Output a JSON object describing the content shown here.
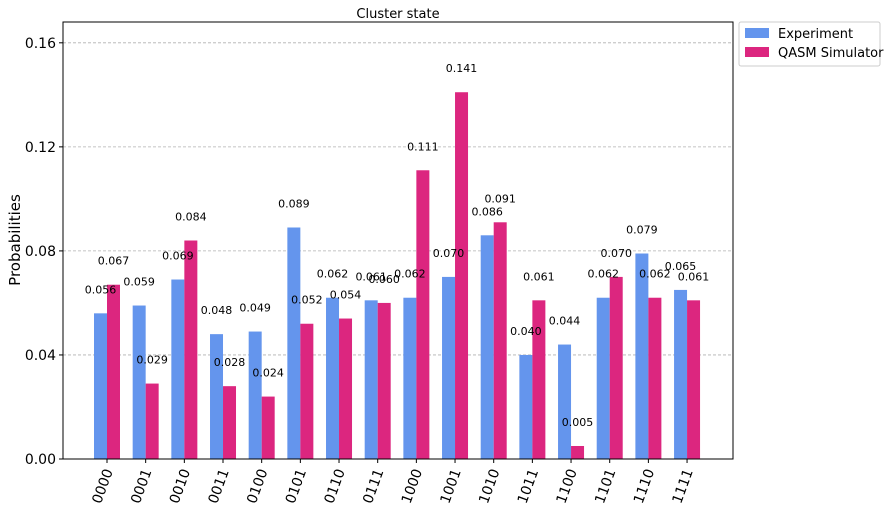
{
  "chart_data": {
    "type": "bar",
    "title": "Cluster state",
    "xlabel": "",
    "ylabel": "Probabilities",
    "ylim": [
      0,
      0.168
    ],
    "yticks": [
      "0.00",
      "0.04",
      "0.08",
      "0.12",
      "0.16"
    ],
    "ytick_values": [
      0,
      0.04,
      0.08,
      0.12,
      0.16
    ],
    "grid": "horizontal dashed",
    "legend_position": "outside-top-right",
    "categories": [
      "0000",
      "0001",
      "0010",
      "0011",
      "0100",
      "0101",
      "0110",
      "0111",
      "1000",
      "1001",
      "1010",
      "1011",
      "1100",
      "1101",
      "1110",
      "1111"
    ],
    "series": [
      {
        "name": "Experiment",
        "color": "#6495ED",
        "values": [
          0.056,
          0.059,
          0.069,
          0.048,
          0.049,
          0.089,
          0.062,
          0.061,
          0.062,
          0.07,
          0.086,
          0.04,
          0.044,
          0.062,
          0.079,
          0.065
        ],
        "labels": [
          "0.056",
          "0.059",
          "0.069",
          "0.048",
          "0.049",
          "0.089",
          "0.062",
          "0.061",
          "0.062",
          "0.070",
          "0.086",
          "0.040",
          "0.044",
          "0.062",
          "0.079",
          "0.065"
        ]
      },
      {
        "name": "QASM Simulator",
        "color": "#DC267F",
        "values": [
          0.067,
          0.029,
          0.084,
          0.028,
          0.024,
          0.052,
          0.054,
          0.06,
          0.111,
          0.141,
          0.091,
          0.061,
          0.005,
          0.07,
          0.062,
          0.061
        ],
        "labels": [
          "0.067",
          "0.029",
          "0.084",
          "0.028",
          "0.024",
          "0.052",
          "0.054",
          "0.060",
          "0.111",
          "0.141",
          "0.091",
          "0.061",
          "0.005",
          "0.070",
          "0.062",
          "0.061"
        ]
      }
    ]
  }
}
